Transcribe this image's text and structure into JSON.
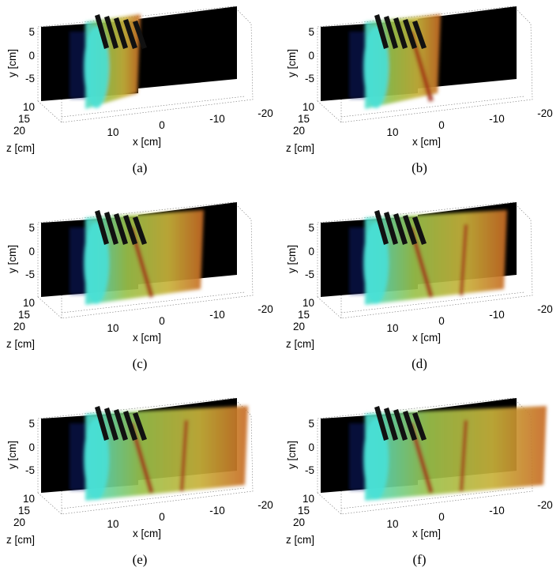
{
  "figure": {
    "panels": [
      {
        "caption": "(a)",
        "fill": 0.2
      },
      {
        "caption": "(b)",
        "fill": 0.33
      },
      {
        "caption": "(c)",
        "fill": 0.6
      },
      {
        "caption": "(d)",
        "fill": 0.75
      },
      {
        "caption": "(e)",
        "fill": 0.88
      },
      {
        "caption": "(f)",
        "fill": 1.0
      }
    ],
    "axes": {
      "y_label": "y [cm]",
      "x_label": "x [cm]",
      "z_label": "z [cm]",
      "y_ticks": [
        "5",
        "0",
        "-5"
      ],
      "x_ticks": [
        "10",
        "0",
        "-10",
        "-20"
      ],
      "z_ticks": [
        "10",
        "15",
        "20"
      ]
    },
    "colors": {
      "background_slice": "#000000",
      "cyan_core": "#48e0d6",
      "yellow_volume": "#c8b23a",
      "red_band": "#a02a14",
      "grid": "#777777"
    }
  }
}
